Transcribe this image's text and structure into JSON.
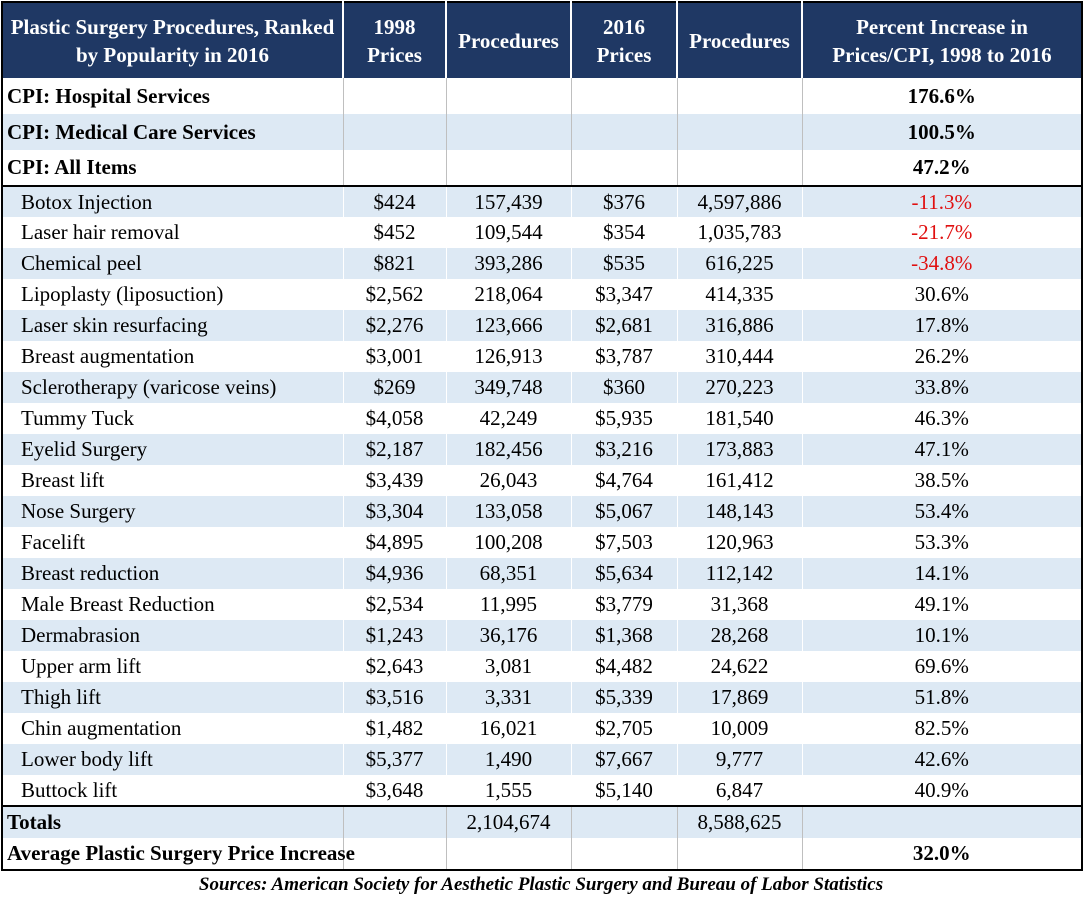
{
  "chart_data": {
    "type": "table",
    "headers": [
      "Plastic Surgery Procedures, Ranked by Popularity in 2016",
      "1998 Prices",
      "Procedures",
      "2016 Prices",
      "Procedures",
      "Percent Increase in Prices/CPI, 1998 to 2016"
    ],
    "cpi_rows": [
      {
        "label": "CPI: Hospital Services",
        "pct": "176.6%"
      },
      {
        "label": "CPI: Medical Care Services",
        "pct": "100.5%"
      },
      {
        "label": "CPI: All Items",
        "pct": "47.2%"
      }
    ],
    "rows": [
      {
        "name": "Botox Injection",
        "p1998": "$424",
        "n1998": "157,439",
        "p2016": "$376",
        "n2016": "4,597,886",
        "pct": "-11.3%"
      },
      {
        "name": "Laser hair removal",
        "p1998": "$452",
        "n1998": "109,544",
        "p2016": "$354",
        "n2016": "1,035,783",
        "pct": "-21.7%"
      },
      {
        "name": "Chemical peel",
        "p1998": "$821",
        "n1998": "393,286",
        "p2016": "$535",
        "n2016": "616,225",
        "pct": "-34.8%"
      },
      {
        "name": "Lipoplasty (liposuction)",
        "p1998": "$2,562",
        "n1998": "218,064",
        "p2016": "$3,347",
        "n2016": "414,335",
        "pct": "30.6%"
      },
      {
        "name": "Laser skin resurfacing",
        "p1998": "$2,276",
        "n1998": "123,666",
        "p2016": "$2,681",
        "n2016": "316,886",
        "pct": "17.8%"
      },
      {
        "name": "Breast augmentation",
        "p1998": "$3,001",
        "n1998": "126,913",
        "p2016": "$3,787",
        "n2016": "310,444",
        "pct": "26.2%"
      },
      {
        "name": "Sclerotherapy (varicose veins)",
        "p1998": "$269",
        "n1998": "349,748",
        "p2016": "$360",
        "n2016": "270,223",
        "pct": "33.8%"
      },
      {
        "name": "Tummy Tuck",
        "p1998": "$4,058",
        "n1998": "42,249",
        "p2016": "$5,935",
        "n2016": "181,540",
        "pct": "46.3%"
      },
      {
        "name": "Eyelid Surgery",
        "p1998": "$2,187",
        "n1998": "182,456",
        "p2016": "$3,216",
        "n2016": "173,883",
        "pct": "47.1%"
      },
      {
        "name": "Breast lift",
        "p1998": "$3,439",
        "n1998": "26,043",
        "p2016": "$4,764",
        "n2016": "161,412",
        "pct": "38.5%"
      },
      {
        "name": "Nose Surgery",
        "p1998": "$3,304",
        "n1998": "133,058",
        "p2016": "$5,067",
        "n2016": "148,143",
        "pct": "53.4%"
      },
      {
        "name": "Facelift",
        "p1998": "$4,895",
        "n1998": "100,208",
        "p2016": "$7,503",
        "n2016": "120,963",
        "pct": "53.3%"
      },
      {
        "name": "Breast reduction",
        "p1998": "$4,936",
        "n1998": "68,351",
        "p2016": "$5,634",
        "n2016": "112,142",
        "pct": "14.1%"
      },
      {
        "name": "Male Breast Reduction",
        "p1998": "$2,534",
        "n1998": "11,995",
        "p2016": "$3,779",
        "n2016": "31,368",
        "pct": "49.1%"
      },
      {
        "name": "Dermabrasion",
        "p1998": "$1,243",
        "n1998": "36,176",
        "p2016": "$1,368",
        "n2016": "28,268",
        "pct": "10.1%"
      },
      {
        "name": "Upper arm lift",
        "p1998": "$2,643",
        "n1998": "3,081",
        "p2016": "$4,482",
        "n2016": "24,622",
        "pct": "69.6%"
      },
      {
        "name": "Thigh lift",
        "p1998": "$3,516",
        "n1998": "3,331",
        "p2016": "$5,339",
        "n2016": "17,869",
        "pct": "51.8%"
      },
      {
        "name": "Chin augmentation",
        "p1998": "$1,482",
        "n1998": "16,021",
        "p2016": "$2,705",
        "n2016": "10,009",
        "pct": "82.5%"
      },
      {
        "name": "Lower body lift",
        "p1998": "$5,377",
        "n1998": "1,490",
        "p2016": "$7,667",
        "n2016": "9,777",
        "pct": "42.6%"
      },
      {
        "name": "Buttock lift",
        "p1998": "$3,648",
        "n1998": "1,555",
        "p2016": "$5,140",
        "n2016": "6,847",
        "pct": "40.9%"
      }
    ],
    "totals": {
      "label": "Totals",
      "n1998": "2,104,674",
      "n2016": "8,588,625"
    },
    "average": {
      "label": "Average Plastic Surgery Price Increase",
      "pct": "32.0%"
    },
    "source": "Sources: American Society for Aesthetic Plastic Surgery and Bureau of Labor Statistics",
    "colors": {
      "header_bg": "#1f3864",
      "header_text": "#ffffff",
      "stripe": "#dde9f4",
      "negative": "#e01010"
    }
  }
}
